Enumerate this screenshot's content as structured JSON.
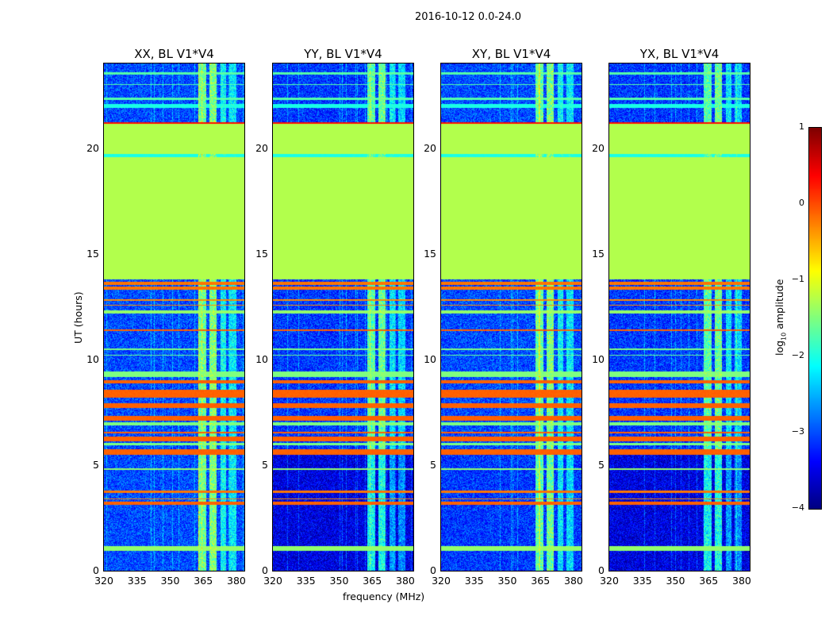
{
  "chart_data": {
    "type": "heatmap",
    "title": "2016-10-12 0.0-24.0",
    "panels": [
      {
        "title": "XX, BL V1*V4",
        "base": -3.0,
        "low_base": -3.0
      },
      {
        "title": "YY, BL V1*V4",
        "base": -3.1,
        "low_base": -3.5
      },
      {
        "title": "XY, BL V1*V4",
        "base": -3.0,
        "low_base": -3.1
      },
      {
        "title": "YX, BL V1*V4",
        "base": -3.1,
        "low_base": -3.5
      }
    ],
    "xlabel": "frequency (MHz)",
    "ylabel": "UT (hours)",
    "xlim": [
      320,
      383.6
    ],
    "ylim": [
      0,
      24
    ],
    "xticks": [
      "320",
      "335",
      "350",
      "365",
      "380"
    ],
    "yticks": [
      "0",
      "5",
      "10",
      "15",
      "20"
    ],
    "colorbar": {
      "label_prefix": "log",
      "label_sub": "10",
      "label_suffix": " amplitude",
      "range": [
        -4,
        1
      ],
      "ticks": [
        "1",
        "0",
        "−1",
        "−2",
        "−3",
        "−4"
      ],
      "colormap": "jet"
    },
    "bands": [
      {
        "from": 13.8,
        "to": 21.2,
        "value": -1.25
      },
      {
        "from": 19.6,
        "to": 19.75,
        "value": -2.0
      },
      {
        "from": 21.15,
        "to": 21.25,
        "value": 0.3
      },
      {
        "from": 0.95,
        "to": 1.2,
        "value": -1.4
      },
      {
        "from": 3.15,
        "to": 3.3,
        "value": -0.1
      },
      {
        "from": 3.4,
        "to": 3.45,
        "value": -0.3
      },
      {
        "from": 3.7,
        "to": 3.8,
        "value": -0.2
      },
      {
        "from": 4.8,
        "to": 4.85,
        "value": -1.4
      },
      {
        "from": 5.5,
        "to": 5.75,
        "value": -0.1
      },
      {
        "from": 5.95,
        "to": 6.05,
        "value": -1.5
      },
      {
        "from": 6.15,
        "to": 6.35,
        "value": -0.1
      },
      {
        "from": 6.5,
        "to": 6.6,
        "value": -0.1
      },
      {
        "from": 6.9,
        "to": 7.05,
        "value": -1.5
      },
      {
        "from": 7.1,
        "to": 7.35,
        "value": -0.1
      },
      {
        "from": 7.7,
        "to": 7.95,
        "value": -0.1
      },
      {
        "from": 8.2,
        "to": 8.6,
        "value": -0.1
      },
      {
        "from": 8.9,
        "to": 9.05,
        "value": -0.1
      },
      {
        "from": 9.2,
        "to": 9.45,
        "value": -1.5
      },
      {
        "from": 10.2,
        "to": 10.25,
        "value": -1.6
      },
      {
        "from": 10.45,
        "to": 10.55,
        "value": -1.5
      },
      {
        "from": 11.35,
        "to": 11.45,
        "value": -0.1
      },
      {
        "from": 12.2,
        "to": 12.35,
        "value": -1.4
      },
      {
        "from": 12.55,
        "to": 12.6,
        "value": -0.3
      },
      {
        "from": 12.8,
        "to": 12.85,
        "value": -0.3
      },
      {
        "from": 13.3,
        "to": 13.45,
        "value": -0.2
      },
      {
        "from": 13.55,
        "to": 13.7,
        "value": -0.2
      },
      {
        "from": 21.9,
        "to": 22.1,
        "value": -2.0
      },
      {
        "from": 22.3,
        "to": 22.4,
        "value": -1.7
      },
      {
        "from": 23.0,
        "to": 23.05,
        "value": -1.7
      },
      {
        "from": 23.5,
        "to": 23.6,
        "value": -1.7
      }
    ],
    "channels": [
      {
        "from": 362.5,
        "to": 366,
        "boost": 1.4
      },
      {
        "from": 367.5,
        "to": 371,
        "boost": 1.5
      },
      {
        "from": 372.5,
        "to": 375,
        "boost": 0.9
      },
      {
        "from": 376.5,
        "to": 380,
        "boost": 0.8
      }
    ]
  }
}
